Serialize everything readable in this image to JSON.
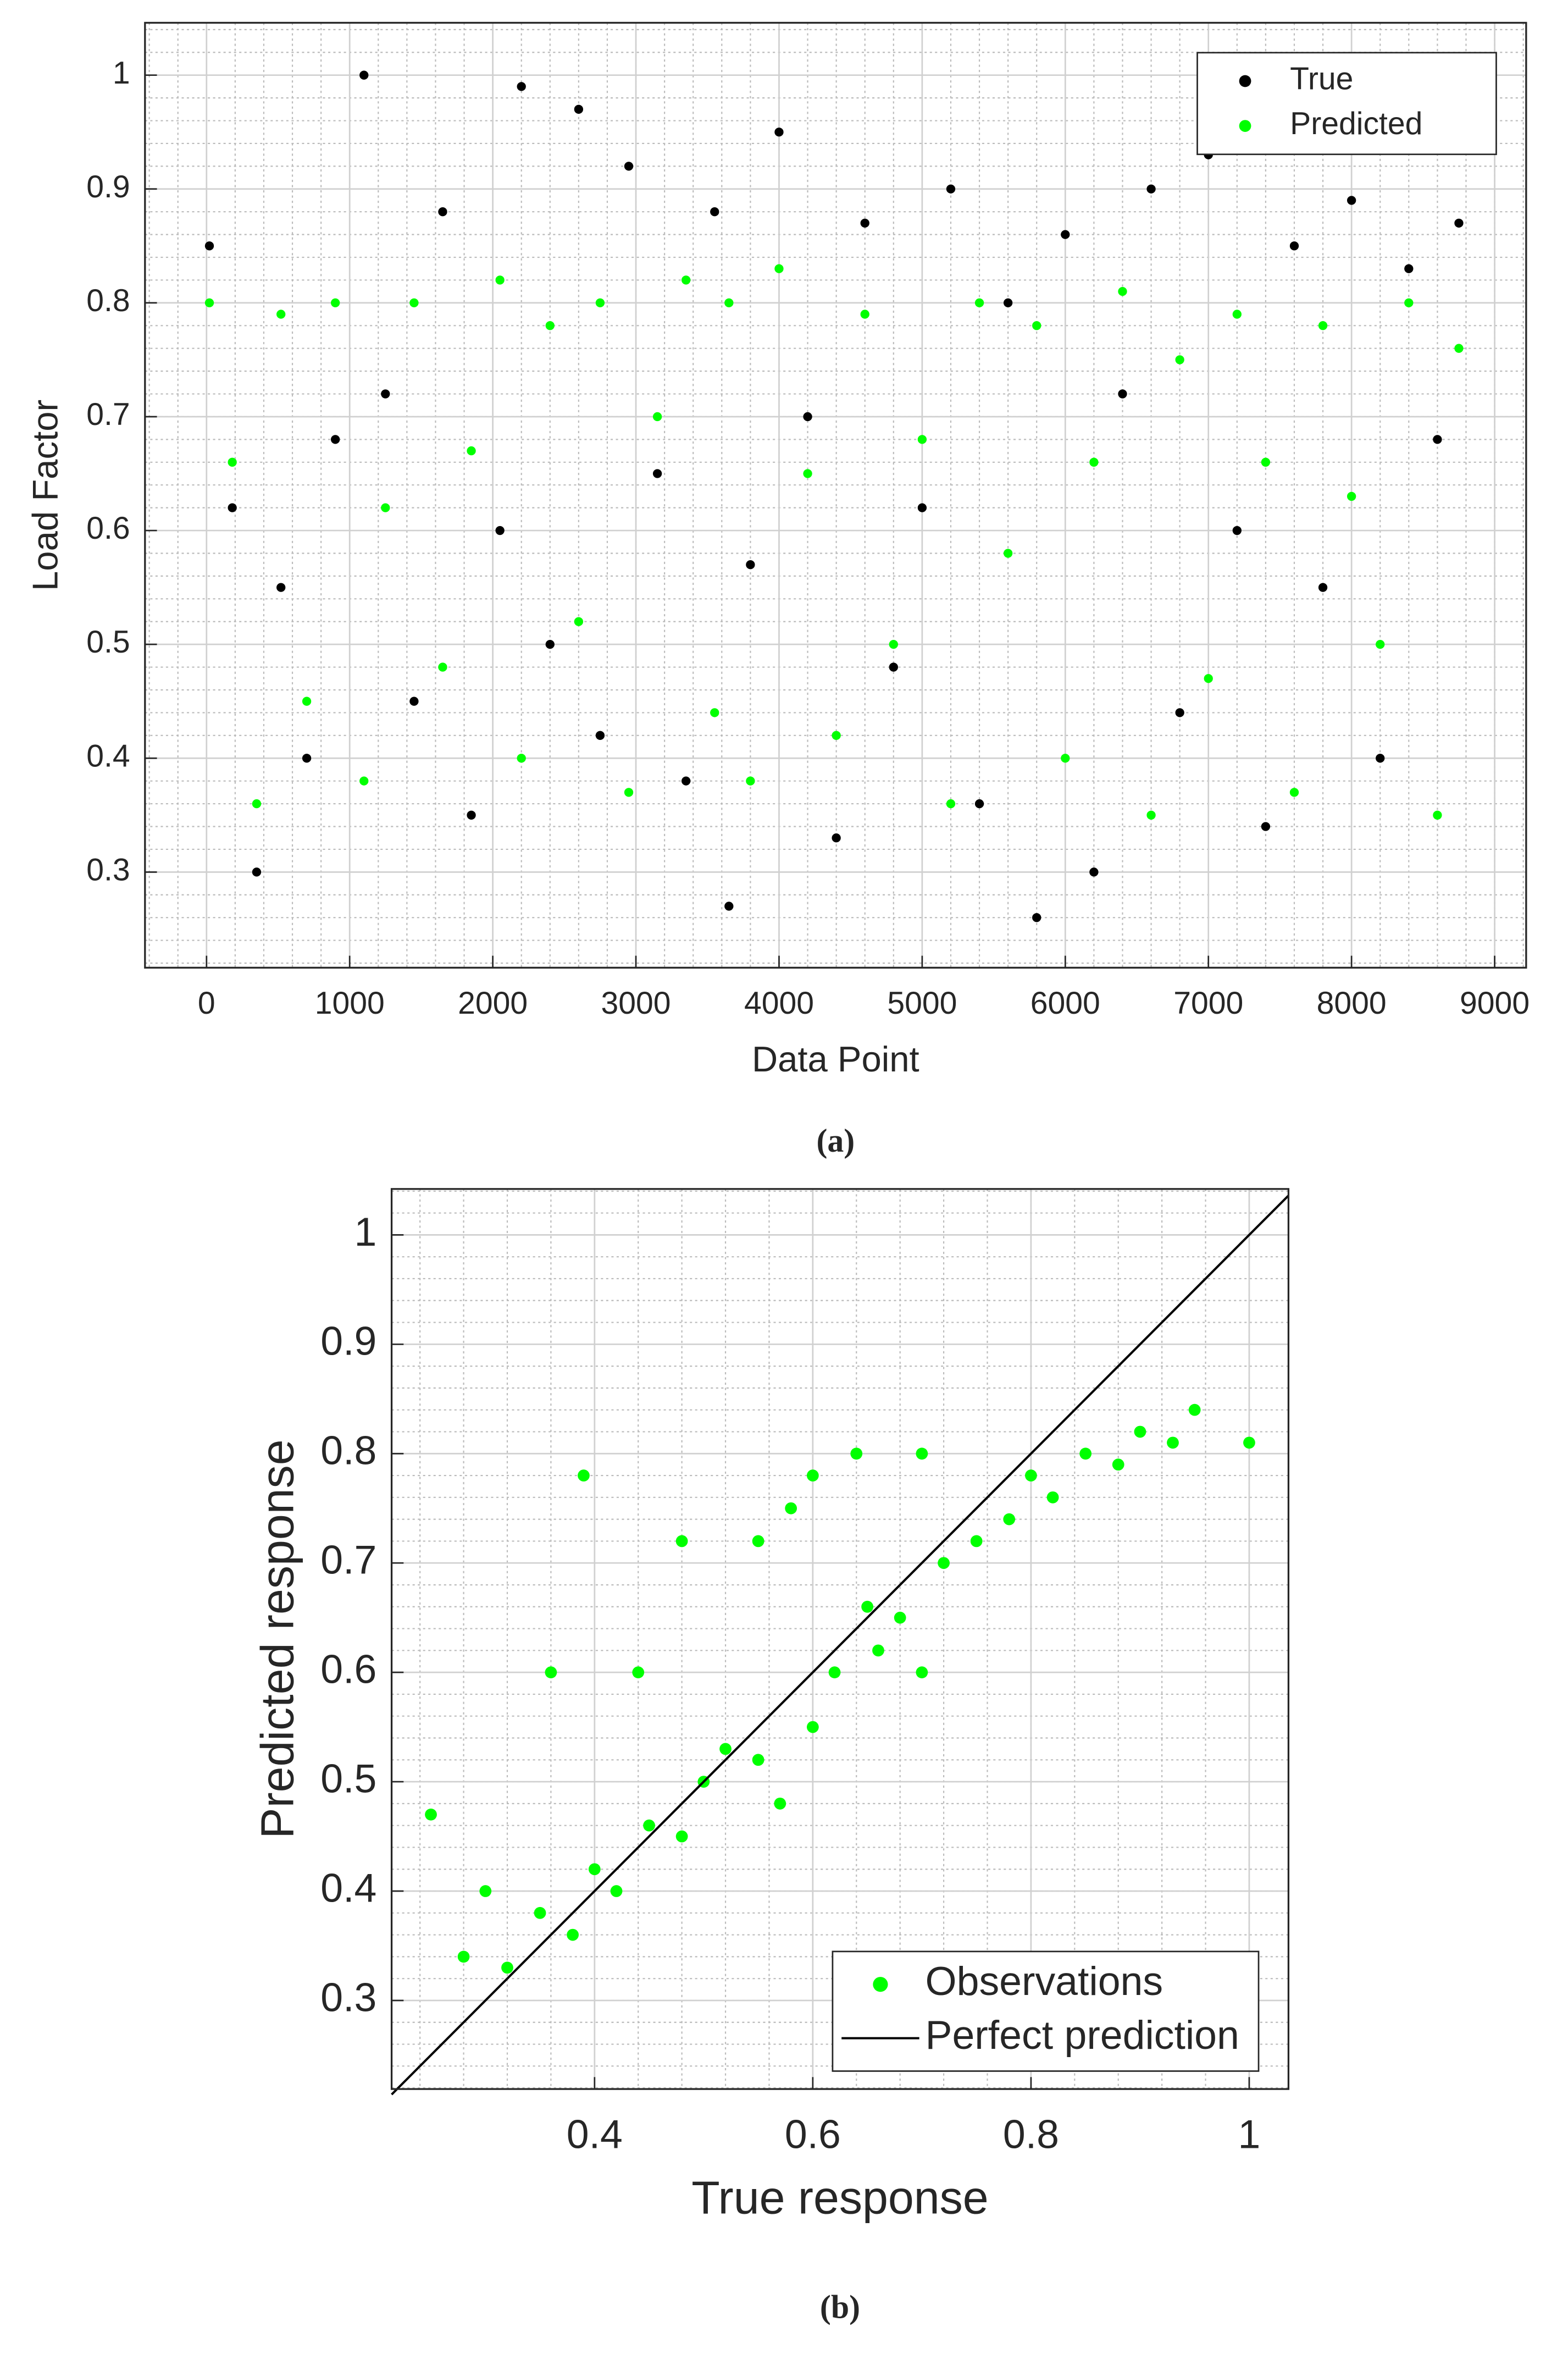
{
  "chart_data": [
    {
      "type": "scatter",
      "caption": "(a)",
      "x_label": "Data Point",
      "y_label": "Load Factor",
      "xlim": [
        -430,
        9220
      ],
      "ylim": [
        0.216,
        1.046
      ],
      "xticks": [
        0,
        1000,
        2000,
        3000,
        4000,
        5000,
        6000,
        7000,
        8000,
        9000
      ],
      "yticks": [
        0.3,
        0.4,
        0.5,
        0.6,
        0.7,
        0.8,
        0.9,
        1
      ],
      "grid": true,
      "minor_grid": true,
      "legend": "northeast",
      "series": [
        {
          "name": "True",
          "color": "#000000",
          "x": [
            20,
            180,
            350,
            520,
            700,
            900,
            1100,
            1250,
            1450,
            1650,
            1850,
            2050,
            2200,
            2400,
            2600,
            2750,
            2950,
            3150,
            3350,
            3550,
            3650,
            3800,
            4000,
            4200,
            4400,
            4600,
            4800,
            5000,
            5200,
            5400,
            5600,
            5800,
            6000,
            6200,
            6400,
            6600,
            6800,
            7000,
            7200,
            7400,
            7600,
            7800,
            8000,
            8200,
            8400,
            8600,
            8750
          ],
          "values": [
            0.85,
            0.62,
            0.3,
            0.55,
            0.4,
            0.68,
            1.0,
            0.72,
            0.45,
            0.88,
            0.35,
            0.6,
            0.99,
            0.5,
            0.97,
            0.42,
            0.92,
            0.65,
            0.38,
            0.88,
            0.27,
            0.57,
            0.95,
            0.7,
            0.33,
            0.87,
            0.48,
            0.62,
            0.9,
            0.36,
            0.8,
            0.26,
            0.86,
            0.3,
            0.72,
            0.9,
            0.44,
            0.93,
            0.6,
            0.34,
            0.85,
            0.55,
            0.89,
            0.4,
            0.83,
            0.68,
            0.87
          ]
        },
        {
          "name": "Predicted",
          "color": "#00ff00",
          "x": [
            20,
            180,
            350,
            520,
            700,
            900,
            1100,
            1250,
            1450,
            1650,
            1850,
            2050,
            2200,
            2400,
            2600,
            2750,
            2950,
            3150,
            3350,
            3550,
            3650,
            3800,
            4000,
            4200,
            4400,
            4600,
            4800,
            5000,
            5200,
            5400,
            5600,
            5800,
            6000,
            6200,
            6400,
            6600,
            6800,
            7000,
            7200,
            7400,
            7600,
            7800,
            8000,
            8200,
            8400,
            8600,
            8750
          ],
          "values": [
            0.8,
            0.66,
            0.36,
            0.79,
            0.45,
            0.8,
            0.38,
            0.62,
            0.8,
            0.48,
            0.67,
            0.82,
            0.4,
            0.78,
            0.52,
            0.8,
            0.37,
            0.7,
            0.82,
            0.44,
            0.8,
            0.38,
            0.83,
            0.65,
            0.42,
            0.79,
            0.5,
            0.68,
            0.36,
            0.8,
            0.58,
            0.78,
            0.4,
            0.66,
            0.81,
            0.35,
            0.75,
            0.47,
            0.79,
            0.66,
            0.37,
            0.78,
            0.63,
            0.5,
            0.8,
            0.35,
            0.76
          ]
        }
      ]
    },
    {
      "type": "scatter",
      "caption": "(b)",
      "x_label": "True response",
      "y_label": "Predicted response",
      "xlim": [
        0.214,
        1.036
      ],
      "ylim": [
        0.219,
        1.042
      ],
      "xticks": [
        0.4,
        0.6,
        0.8,
        1
      ],
      "yticks": [
        0.3,
        0.4,
        0.5,
        0.6,
        0.7,
        0.8,
        0.9,
        1
      ],
      "grid": true,
      "minor_grid": true,
      "legend": "southeast",
      "series": [
        {
          "name": "Observations",
          "color": "#00ff00",
          "x": [
            0.25,
            0.28,
            0.3,
            0.32,
            0.35,
            0.38,
            0.4,
            0.42,
            0.45,
            0.48,
            0.5,
            0.52,
            0.55,
            0.57,
            0.6,
            0.62,
            0.64,
            0.66,
            0.68,
            0.7,
            0.72,
            0.75,
            0.78,
            0.8,
            0.82,
            0.85,
            0.88,
            0.9,
            0.93,
            0.95,
            1.0,
            0.39,
            0.44,
            0.6,
            0.55,
            0.7,
            0.58,
            0.36,
            0.48,
            0.65
          ],
          "values": [
            0.47,
            0.34,
            0.4,
            0.33,
            0.38,
            0.36,
            0.42,
            0.4,
            0.46,
            0.45,
            0.5,
            0.53,
            0.52,
            0.48,
            0.55,
            0.6,
            0.8,
            0.62,
            0.65,
            0.6,
            0.7,
            0.72,
            0.74,
            0.78,
            0.76,
            0.8,
            0.79,
            0.82,
            0.81,
            0.84,
            0.81,
            0.78,
            0.6,
            0.78,
            0.72,
            0.8,
            0.75,
            0.6,
            0.72,
            0.66
          ]
        },
        {
          "name": "Perfect prediction",
          "type": "line",
          "color": "#000000",
          "x": [
            0.214,
            1.036
          ],
          "values": [
            0.214,
            1.036
          ]
        }
      ]
    }
  ]
}
